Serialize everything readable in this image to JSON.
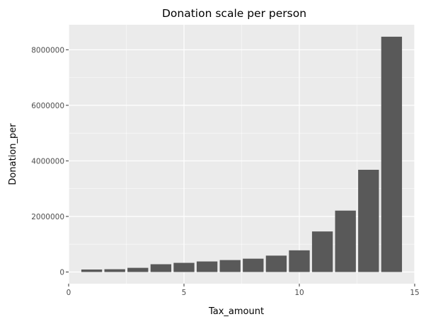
{
  "chart_data": {
    "type": "bar",
    "title": "Donation scale per person",
    "xlabel": "Tax_amount",
    "ylabel": "Donation_per",
    "x": [
      1,
      2,
      3,
      4,
      5,
      6,
      7,
      8,
      9,
      10,
      11,
      12,
      13,
      14
    ],
    "values": [
      90000,
      100000,
      150000,
      280000,
      330000,
      380000,
      430000,
      480000,
      590000,
      780000,
      1460000,
      2210000,
      3680000,
      8470000
    ],
    "xlim": [
      0,
      15
    ],
    "ylim": [
      -420000,
      8900000
    ],
    "x_ticks": [
      0,
      5,
      10,
      15
    ],
    "x_tick_labels": [
      "0",
      "5",
      "10",
      "15"
    ],
    "y_ticks": [
      0,
      2000000,
      4000000,
      6000000,
      8000000
    ],
    "y_tick_labels": [
      "0",
      "2000000",
      "4000000",
      "6000000",
      "8000000"
    ],
    "grid": true,
    "legend": "none",
    "colors": {
      "bar": "#595959",
      "panel_background": "#ebebeb",
      "grid_major": "#ffffff",
      "tick_text": "#4d4d4d"
    }
  }
}
